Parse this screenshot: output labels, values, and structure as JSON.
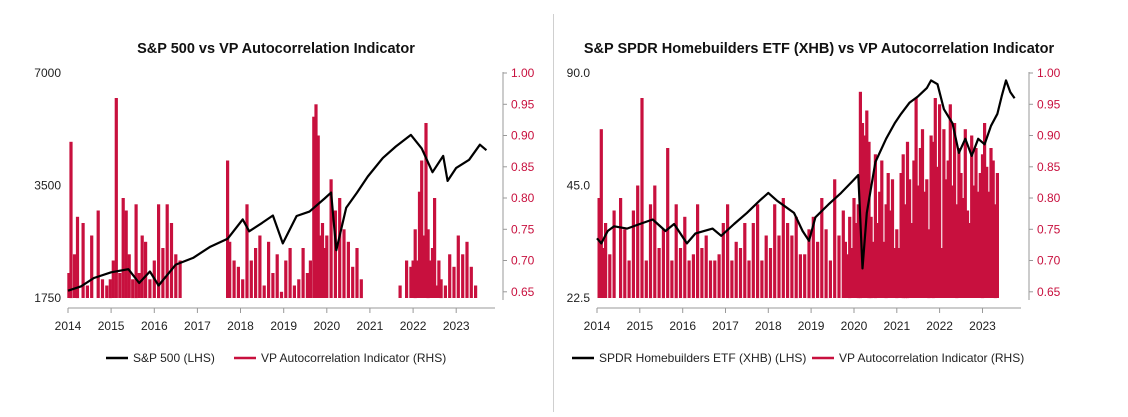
{
  "colors": {
    "price": "#000000",
    "indicator": "#c8103e",
    "axis": "#999999"
  },
  "chart_data": [
    {
      "type": "bar+line",
      "title": "S&P 500 vs VP Autocorrelation Indicator",
      "left_axis": {
        "scale": "log",
        "ticks": [
          "7000",
          "3500",
          "1750"
        ],
        "range": [
          1750,
          7000
        ]
      },
      "right_axis": {
        "ticks": [
          "1.00",
          "0.95",
          "0.90",
          "0.85",
          "0.80",
          "0.75",
          "0.70",
          "0.65"
        ],
        "range": [
          0.64,
          1.0
        ]
      },
      "x_ticks": [
        "2014",
        "2015",
        "2016",
        "2017",
        "2018",
        "2019",
        "2020",
        "2021",
        "2022",
        "2023"
      ],
      "x_range": [
        2014.0,
        2023.9
      ],
      "legend": [
        "S&P 500 (LHS)",
        "VP Autocorrelation Indicator (RHS)"
      ],
      "series": [
        {
          "name": "S&P 500 (LHS)",
          "type": "line",
          "axis": "left",
          "x": [
            2014.0,
            2014.3,
            2014.6,
            2015.0,
            2015.4,
            2015.65,
            2015.9,
            2016.1,
            2016.5,
            2016.9,
            2017.3,
            2017.7,
            2018.05,
            2018.2,
            2018.5,
            2018.75,
            2018.98,
            2019.3,
            2019.6,
            2019.95,
            2020.1,
            2020.22,
            2020.45,
            2020.7,
            2020.95,
            2021.3,
            2021.6,
            2021.95,
            2022.2,
            2022.45,
            2022.7,
            2022.8,
            2023.0,
            2023.3,
            2023.55,
            2023.7
          ],
          "y": [
            1830,
            1880,
            1980,
            2050,
            2090,
            1920,
            2060,
            1890,
            2150,
            2240,
            2400,
            2520,
            2840,
            2640,
            2780,
            2910,
            2450,
            2900,
            2980,
            3230,
            3350,
            2350,
            3050,
            3350,
            3700,
            4150,
            4450,
            4780,
            4400,
            3800,
            4200,
            3600,
            3900,
            4100,
            4500,
            4350
          ]
        },
        {
          "name": "VP Autocorrelation Indicator (RHS)",
          "type": "bar",
          "axis": "right",
          "x": [
            2014.02,
            2014.07,
            2014.15,
            2014.22,
            2014.35,
            2014.45,
            2014.55,
            2014.7,
            2014.8,
            2014.9,
            2014.98,
            2015.05,
            2015.12,
            2015.2,
            2015.28,
            2015.35,
            2015.42,
            2015.5,
            2015.58,
            2015.65,
            2015.72,
            2015.8,
            2015.9,
            2016.0,
            2016.1,
            2016.2,
            2016.3,
            2016.4,
            2016.5,
            2016.6,
            2017.7,
            2017.75,
            2017.85,
            2017.95,
            2018.05,
            2018.15,
            2018.25,
            2018.35,
            2018.45,
            2018.55,
            2018.65,
            2018.75,
            2018.85,
            2018.95,
            2019.05,
            2019.15,
            2019.25,
            2019.35,
            2019.45,
            2019.55,
            2019.62,
            2019.7,
            2019.75,
            2019.8,
            2019.85,
            2019.9,
            2019.95,
            2020.0,
            2020.1,
            2020.2,
            2020.3,
            2020.4,
            2020.5,
            2020.6,
            2020.7,
            2020.8,
            2021.7,
            2021.85,
            2021.95,
            2022.0,
            2022.05,
            2022.1,
            2022.15,
            2022.2,
            2022.25,
            2022.3,
            2022.35,
            2022.4,
            2022.45,
            2022.5,
            2022.55,
            2022.6,
            2022.65,
            2022.75,
            2022.85,
            2022.95,
            2023.05,
            2023.15,
            2023.25,
            2023.35,
            2023.45
          ],
          "y": [
            0.68,
            0.89,
            0.71,
            0.77,
            0.76,
            0.66,
            0.74,
            0.78,
            0.67,
            0.66,
            0.67,
            0.7,
            0.96,
            0.68,
            0.8,
            0.78,
            0.71,
            0.67,
            0.79,
            0.68,
            0.74,
            0.73,
            0.67,
            0.7,
            0.79,
            0.72,
            0.79,
            0.76,
            0.71,
            0.7,
            0.86,
            0.73,
            0.7,
            0.69,
            0.67,
            0.79,
            0.7,
            0.72,
            0.74,
            0.66,
            0.73,
            0.68,
            0.71,
            0.65,
            0.7,
            0.72,
            0.66,
            0.67,
            0.72,
            0.68,
            0.7,
            0.93,
            0.95,
            0.9,
            0.74,
            0.76,
            0.72,
            0.74,
            0.83,
            0.78,
            0.8,
            0.75,
            0.73,
            0.69,
            0.72,
            0.67,
            0.66,
            0.7,
            0.69,
            0.7,
            0.75,
            0.7,
            0.81,
            0.86,
            0.74,
            0.92,
            0.75,
            0.7,
            0.72,
            0.8,
            0.66,
            0.7,
            0.67,
            0.66,
            0.71,
            0.69,
            0.74,
            0.71,
            0.73,
            0.69,
            0.66
          ]
        }
      ]
    },
    {
      "type": "bar+line",
      "title": "S&P SPDR Homebuilders ETF (XHB) vs VP Autocorrelation Indicator",
      "left_axis": {
        "scale": "log",
        "ticks": [
          "90.0",
          "45.0",
          "22.5"
        ],
        "range": [
          22.5,
          90.0
        ]
      },
      "right_axis": {
        "ticks": [
          "1.00",
          "0.95",
          "0.90",
          "0.85",
          "0.80",
          "0.75",
          "0.70",
          "0.65"
        ],
        "range": [
          0.64,
          1.0
        ]
      },
      "x_ticks": [
        "2014",
        "2015",
        "2016",
        "2017",
        "2018",
        "2019",
        "2020",
        "2021",
        "2022",
        "2023"
      ],
      "x_range": [
        2014.0,
        2023.9
      ],
      "legend": [
        "SPDR Homebuilders ETF (XHB) (LHS)",
        "VP Autocorrelation Indicator (RHS)"
      ],
      "series": [
        {
          "name": "SPDR Homebuilders ETF (XHB) (LHS)",
          "type": "line",
          "axis": "left",
          "x": [
            2014.0,
            2014.1,
            2014.25,
            2014.4,
            2014.7,
            2015.0,
            2015.3,
            2015.6,
            2015.8,
            2016.1,
            2016.3,
            2016.7,
            2016.9,
            2017.2,
            2017.5,
            2017.8,
            2018.0,
            2018.2,
            2018.4,
            2018.6,
            2018.8,
            2018.95,
            2019.1,
            2019.4,
            2019.7,
            2019.95,
            2020.1,
            2020.2,
            2020.3,
            2020.5,
            2020.75,
            2020.95,
            2021.1,
            2021.3,
            2021.5,
            2021.7,
            2021.8,
            2021.95,
            2022.1,
            2022.3,
            2022.45,
            2022.6,
            2022.75,
            2022.9,
            2023.05,
            2023.2,
            2023.35,
            2023.45,
            2023.55,
            2023.65,
            2023.75
          ],
          "y": [
            32.5,
            31.5,
            34,
            35,
            34.5,
            35.5,
            36.5,
            34,
            35.5,
            31.5,
            33.5,
            34.5,
            33,
            35.5,
            38,
            41,
            43,
            41,
            39.5,
            38,
            34,
            32,
            37,
            40,
            43,
            46,
            48,
            27,
            38,
            52,
            60,
            66,
            70,
            75,
            78,
            82,
            86,
            84,
            72,
            66,
            55,
            60,
            54,
            60,
            58,
            65,
            70,
            78,
            86,
            80,
            77
          ]
        },
        {
          "name": "VP Autocorrelation Indicator (RHS)",
          "type": "bar",
          "axis": "right",
          "x": [
            2014.05,
            2014.1,
            2014.15,
            2014.2,
            2014.3,
            2014.4,
            2014.55,
            2014.65,
            2014.75,
            2014.85,
            2014.95,
            2015.05,
            2015.15,
            2015.25,
            2015.35,
            2015.45,
            2015.55,
            2015.65,
            2015.75,
            2015.85,
            2015.95,
            2016.05,
            2016.15,
            2016.25,
            2016.35,
            2016.45,
            2016.55,
            2016.65,
            2016.75,
            2016.85,
            2016.95,
            2017.05,
            2017.15,
            2017.25,
            2017.35,
            2017.45,
            2017.55,
            2017.65,
            2017.75,
            2017.85,
            2017.95,
            2018.05,
            2018.15,
            2018.25,
            2018.35,
            2018.45,
            2018.55,
            2018.65,
            2018.75,
            2018.85,
            2018.95,
            2019.05,
            2019.15,
            2019.25,
            2019.35,
            2019.45,
            2019.55,
            2019.65,
            2019.75,
            2019.8,
            2019.85,
            2019.9,
            2019.95,
            2020.0,
            2020.05,
            2020.1,
            2020.15,
            2020.2,
            2020.25,
            2020.3,
            2020.35,
            2020.4,
            2020.45,
            2020.5,
            2020.55,
            2020.6,
            2020.65,
            2020.7,
            2020.75,
            2020.8,
            2020.85,
            2020.9,
            2020.95,
            2021.0,
            2021.05,
            2021.1,
            2021.15,
            2021.2,
            2021.25,
            2021.3,
            2021.35,
            2021.4,
            2021.45,
            2021.5,
            2021.55,
            2021.6,
            2021.65,
            2021.7,
            2021.75,
            2021.8,
            2021.85,
            2021.9,
            2021.95,
            2022.0,
            2022.05,
            2022.1,
            2022.15,
            2022.2,
            2022.25,
            2022.3,
            2022.35,
            2022.4,
            2022.45,
            2022.5,
            2022.55,
            2022.6,
            2022.65,
            2022.7,
            2022.75,
            2022.8,
            2022.85,
            2022.9,
            2022.95,
            2023.0,
            2023.05,
            2023.1,
            2023.15,
            2023.2,
            2023.25,
            2023.3,
            2023.35
          ],
          "y": [
            0.8,
            0.91,
            0.72,
            0.76,
            0.71,
            0.78,
            0.8,
            0.75,
            0.7,
            0.78,
            0.82,
            0.96,
            0.7,
            0.79,
            0.82,
            0.72,
            0.75,
            0.88,
            0.7,
            0.79,
            0.72,
            0.77,
            0.7,
            0.71,
            0.79,
            0.72,
            0.74,
            0.7,
            0.7,
            0.71,
            0.76,
            0.79,
            0.7,
            0.73,
            0.72,
            0.76,
            0.7,
            0.76,
            0.79,
            0.7,
            0.74,
            0.72,
            0.79,
            0.74,
            0.8,
            0.76,
            0.74,
            0.77,
            0.71,
            0.71,
            0.75,
            0.77,
            0.73,
            0.8,
            0.75,
            0.7,
            0.83,
            0.74,
            0.78,
            0.73,
            0.71,
            0.77,
            0.72,
            0.8,
            0.76,
            0.79,
            0.97,
            0.92,
            0.9,
            0.94,
            0.89,
            0.77,
            0.73,
            0.87,
            0.76,
            0.81,
            0.86,
            0.73,
            0.79,
            0.84,
            0.78,
            0.83,
            0.72,
            0.75,
            0.72,
            0.84,
            0.87,
            0.79,
            0.89,
            0.83,
            0.76,
            0.86,
            0.96,
            0.82,
            0.88,
            0.91,
            0.81,
            0.83,
            0.75,
            0.9,
            0.89,
            0.96,
            0.85,
            0.95,
            0.72,
            0.91,
            0.83,
            0.86,
            0.95,
            0.82,
            0.92,
            0.79,
            0.88,
            0.84,
            0.8,
            0.91,
            0.78,
            0.76,
            0.9,
            0.82,
            0.88,
            0.81,
            0.84,
            0.87,
            0.92,
            0.85,
            0.81,
            0.88,
            0.86,
            0.79,
            0.84
          ]
        }
      ]
    }
  ]
}
